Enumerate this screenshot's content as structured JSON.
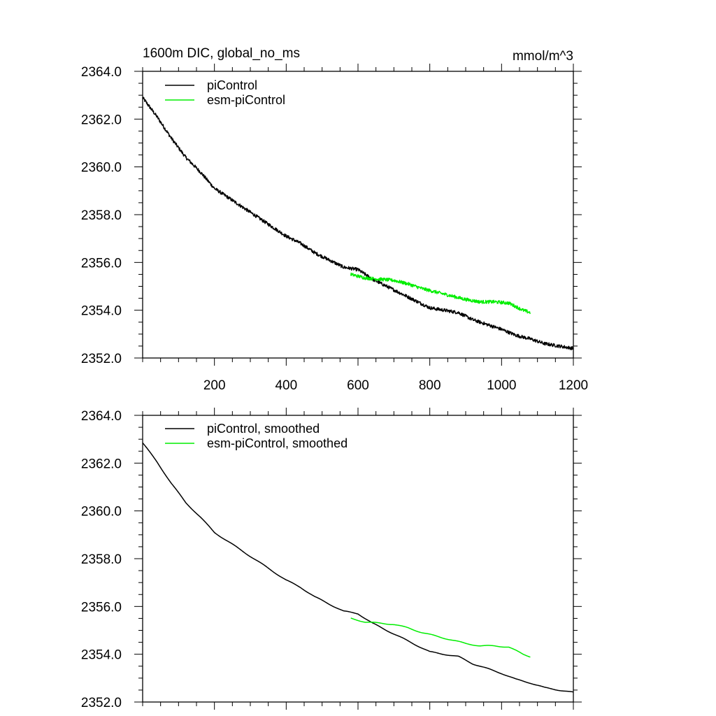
{
  "header": {
    "title_left": "1600m DIC, global_no_ms",
    "units": "mmol/m^3"
  },
  "colors": {
    "piControl": "#000000",
    "esm_piControl": "#00ee00"
  },
  "chart_data": [
    {
      "type": "line",
      "title": "1600m DIC, global_no_ms",
      "units": "mmol/m^3",
      "xlim": [
        0,
        1200
      ],
      "ylim": [
        2352.0,
        2364.0
      ],
      "x_ticks": [
        200,
        400,
        600,
        800,
        1000,
        1200
      ],
      "x_tick_labels": [
        "200",
        "400",
        "600",
        "800",
        "1000",
        "1200"
      ],
      "y_ticks": [
        2352.0,
        2354.0,
        2356.0,
        2358.0,
        2360.0,
        2362.0,
        2364.0
      ],
      "y_tick_labels": [
        "2352.0",
        "2354.0",
        "2356.0",
        "2358.0",
        "2360.0",
        "2362.0",
        "2364.0"
      ],
      "legend_position": "top-left",
      "grid": false,
      "series": [
        {
          "name": "piControl",
          "color": "#000000",
          "noisy": true,
          "x": [
            0,
            40,
            80,
            120,
            160,
            200,
            240,
            280,
            320,
            360,
            400,
            440,
            480,
            520,
            560,
            600,
            640,
            680,
            720,
            760,
            800,
            840,
            880,
            920,
            960,
            1000,
            1040,
            1080,
            1120,
            1160,
            1200
          ],
          "y": [
            2362.9,
            2362.1,
            2361.2,
            2360.4,
            2359.8,
            2359.1,
            2358.7,
            2358.3,
            2357.9,
            2357.5,
            2357.1,
            2356.8,
            2356.4,
            2356.1,
            2355.8,
            2355.7,
            2355.3,
            2355.0,
            2354.7,
            2354.4,
            2354.1,
            2354.0,
            2353.9,
            2353.6,
            2353.4,
            2353.2,
            2352.95,
            2352.8,
            2352.6,
            2352.5,
            2352.4
          ]
        },
        {
          "name": "esm-piControl",
          "color": "#00ee00",
          "noisy": true,
          "x": [
            580,
            620,
            660,
            700,
            740,
            780,
            820,
            860,
            900,
            940,
            980,
            1020,
            1060,
            1080
          ],
          "y": [
            2355.5,
            2355.35,
            2355.3,
            2355.25,
            2355.1,
            2354.9,
            2354.75,
            2354.6,
            2354.45,
            2354.35,
            2354.35,
            2354.3,
            2354.0,
            2353.9
          ]
        }
      ]
    },
    {
      "type": "line",
      "xlim": [
        0,
        1200
      ],
      "ylim": [
        2352.0,
        2364.0
      ],
      "x_ticks": [
        200,
        400,
        600,
        800,
        1000,
        1200
      ],
      "y_ticks": [
        2352.0,
        2354.0,
        2356.0,
        2358.0,
        2360.0,
        2362.0,
        2364.0
      ],
      "y_tick_labels": [
        "2352.0",
        "2354.0",
        "2356.0",
        "2358.0",
        "2360.0",
        "2362.0",
        "2364.0"
      ],
      "legend_position": "top-left",
      "grid": false,
      "series": [
        {
          "name": "piControl, smoothed",
          "color": "#000000",
          "noisy": false,
          "x": [
            0,
            40,
            80,
            120,
            160,
            200,
            240,
            280,
            320,
            360,
            400,
            440,
            480,
            520,
            560,
            600,
            640,
            680,
            720,
            760,
            800,
            840,
            880,
            920,
            960,
            1000,
            1040,
            1080,
            1120,
            1160,
            1200
          ],
          "y": [
            2362.85,
            2362.05,
            2361.15,
            2360.35,
            2359.75,
            2359.1,
            2358.7,
            2358.3,
            2357.9,
            2357.5,
            2357.1,
            2356.8,
            2356.4,
            2356.1,
            2355.8,
            2355.7,
            2355.3,
            2355.0,
            2354.7,
            2354.4,
            2354.1,
            2354.0,
            2353.9,
            2353.6,
            2353.4,
            2353.2,
            2352.95,
            2352.8,
            2352.6,
            2352.5,
            2352.4
          ]
        },
        {
          "name": "esm-piControl, smoothed",
          "color": "#00ee00",
          "noisy": false,
          "x": [
            580,
            620,
            660,
            700,
            740,
            780,
            820,
            860,
            900,
            940,
            980,
            1020,
            1060,
            1080
          ],
          "y": [
            2355.5,
            2355.35,
            2355.3,
            2355.25,
            2355.1,
            2354.9,
            2354.75,
            2354.6,
            2354.45,
            2354.35,
            2354.35,
            2354.3,
            2354.0,
            2353.9
          ]
        }
      ]
    }
  ]
}
